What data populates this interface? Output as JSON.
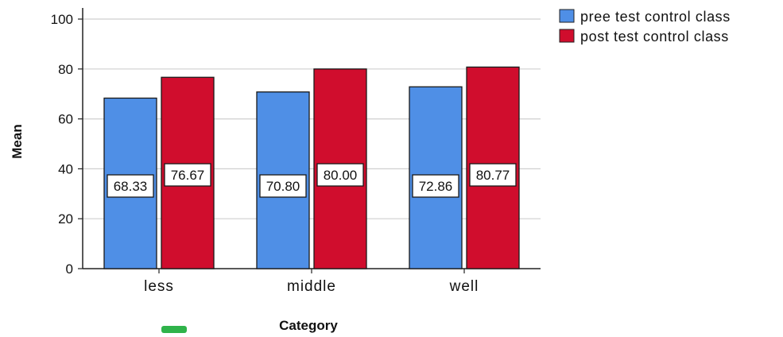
{
  "chart_data": {
    "type": "bar",
    "categories": [
      "less",
      "middle",
      "well"
    ],
    "series": [
      {
        "name": "pree test control class",
        "color": "#4f8fe6",
        "values": [
          68.33,
          70.8,
          72.86
        ],
        "labels": [
          "68.33",
          "70.80",
          "72.86"
        ]
      },
      {
        "name": "post test control class",
        "color": "#d00d2d",
        "values": [
          76.67,
          80.0,
          80.77
        ],
        "labels": [
          "76.67",
          "80.00",
          "80.77"
        ]
      }
    ],
    "xlabel": "Category",
    "ylabel": "Mean",
    "ylim": [
      0,
      100
    ],
    "yticks": [
      "0",
      "20",
      "40",
      "60",
      "80",
      "100"
    ],
    "grid": true,
    "legend_position": "top-right"
  }
}
